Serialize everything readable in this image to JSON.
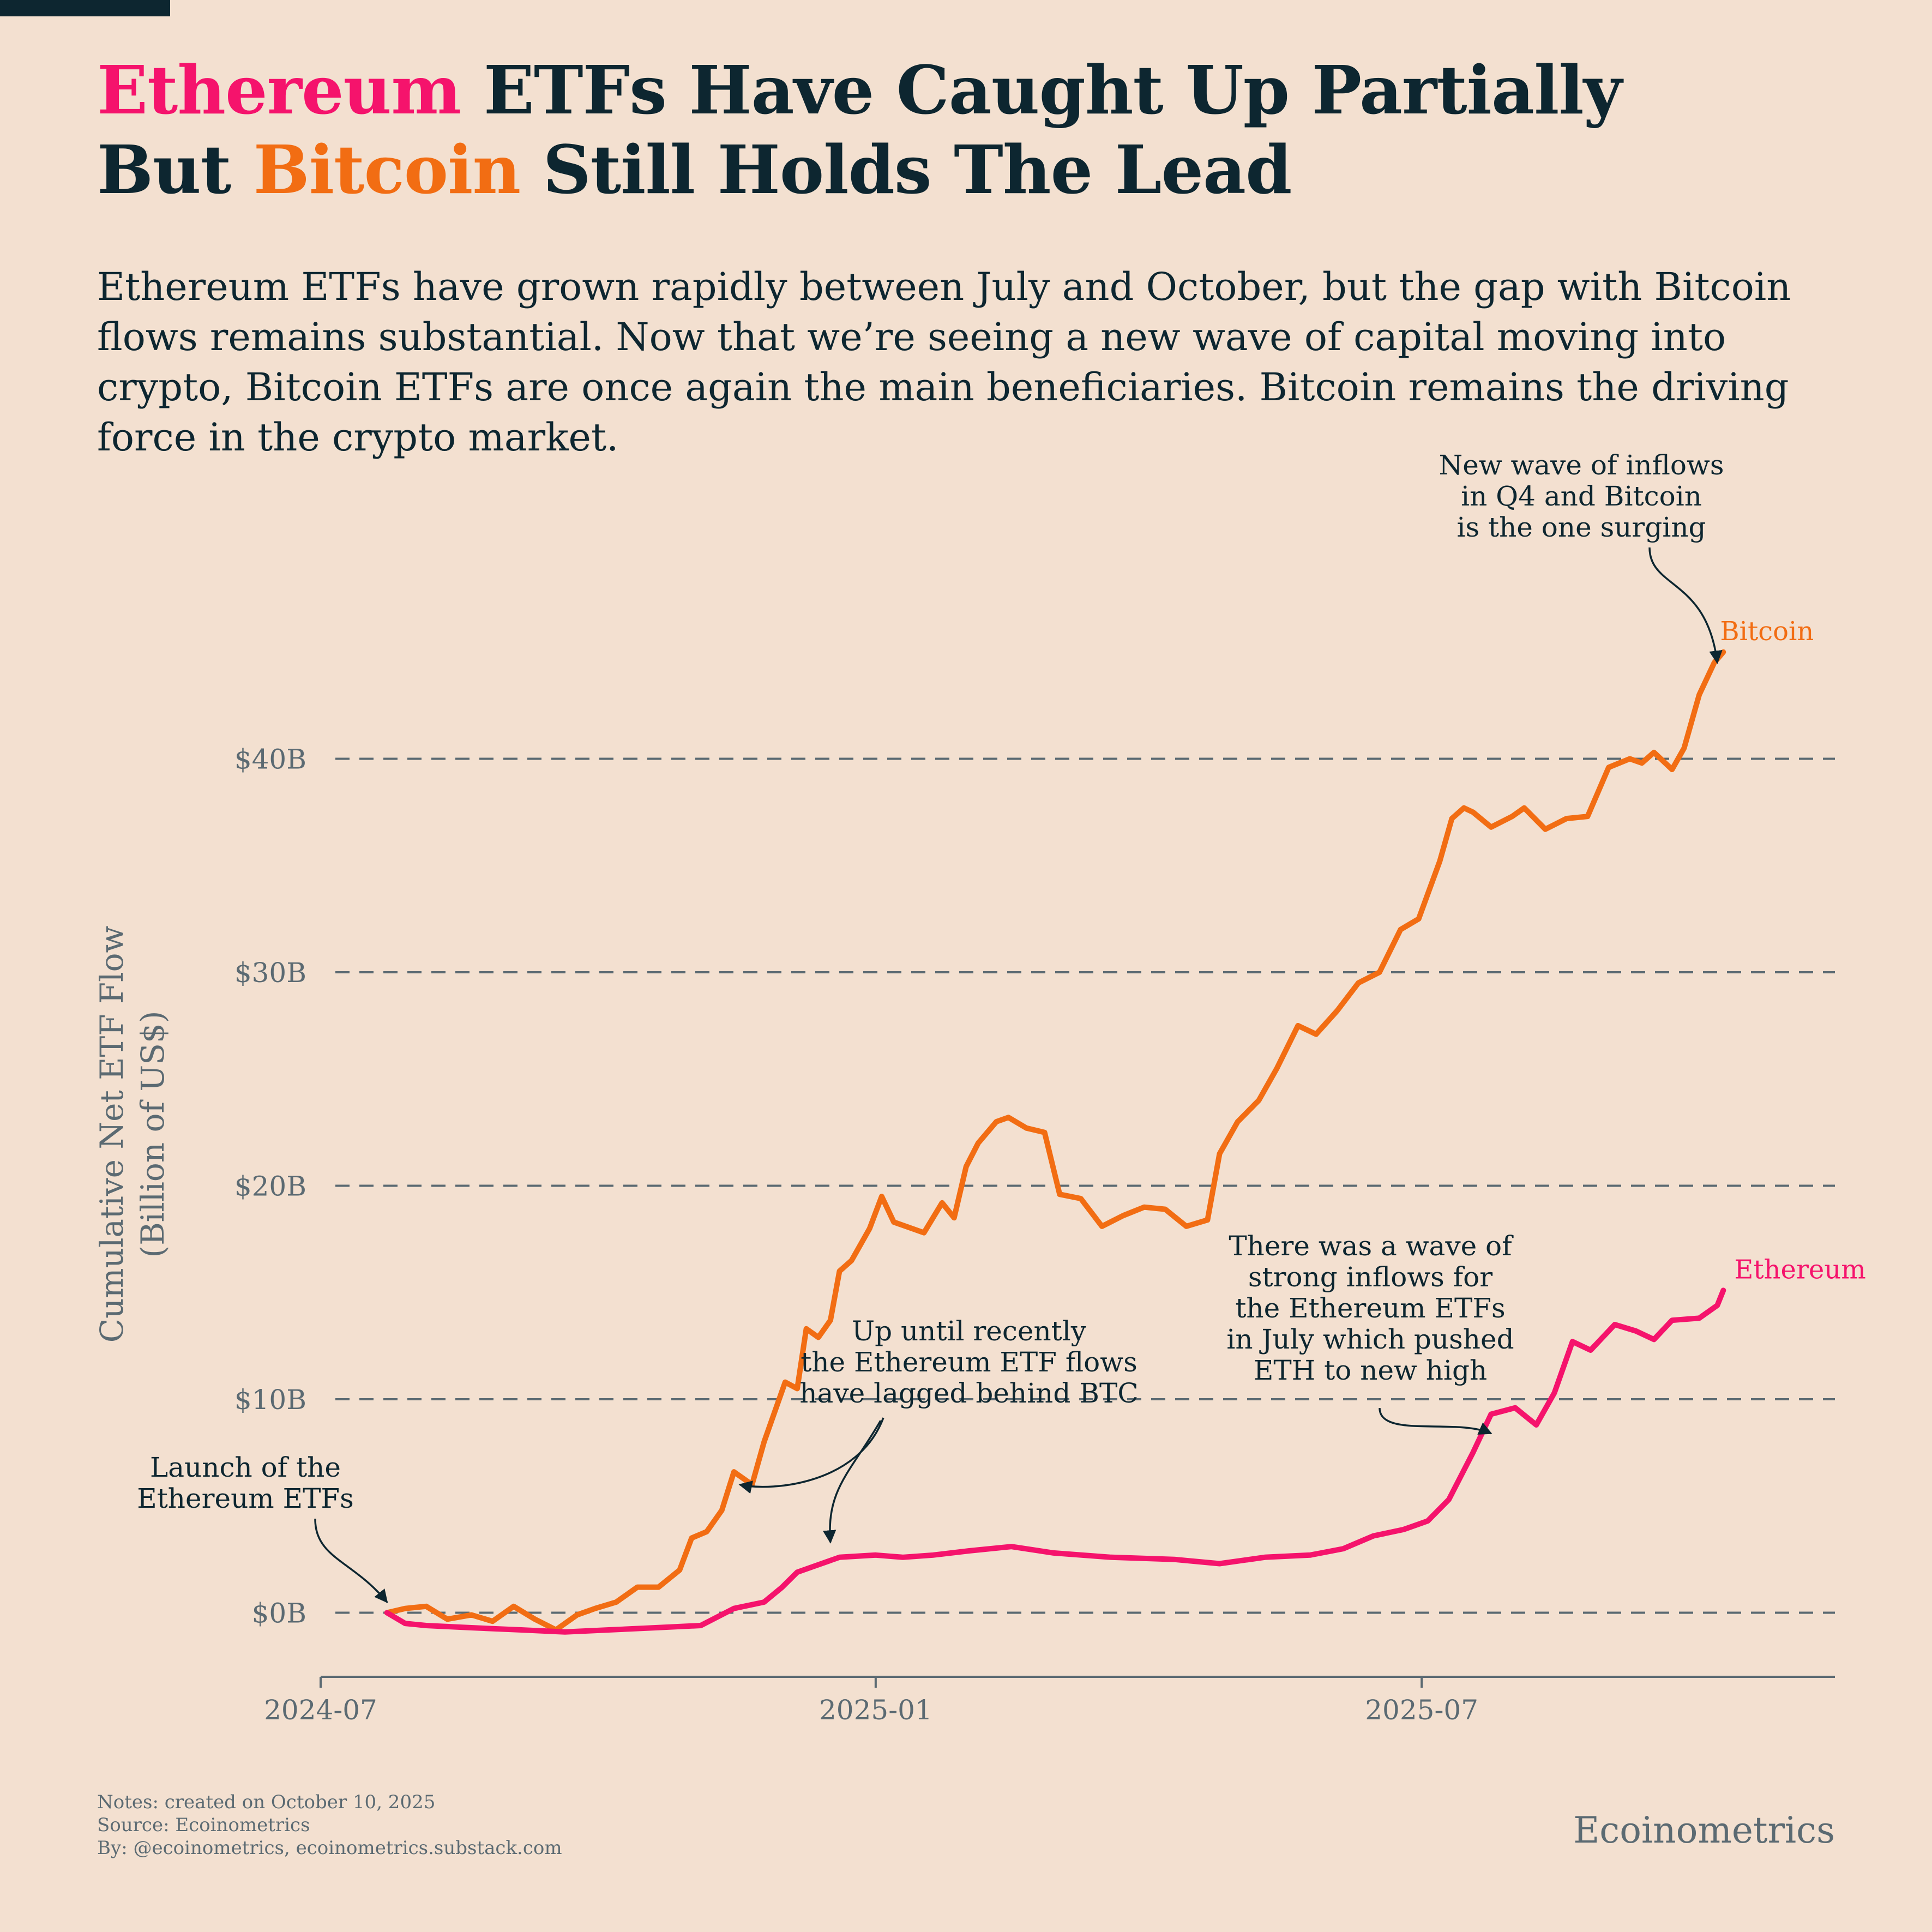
{
  "title": {
    "line1_highlight": "Ethereum",
    "line1_rest": " ETFs Have Caught Up Partially",
    "line2_start": "But ",
    "line2_highlight": "Bitcoin",
    "line2_rest": " Still Holds The Lead"
  },
  "subtitle": "Ethereum ETFs have grown rapidly between July and October, but the gap with Bitcoin flows remains substantial. Now that we’re seeing a new wave of capital moving into crypto, Bitcoin ETFs are once again the main beneficiaries. Bitcoin remains the driving force in the crypto market.",
  "colors": {
    "bitcoin": "#f26d13",
    "ethereum": "#f5136c",
    "text": "#0d2630",
    "muted": "#5b6a72",
    "background": "#f3e0d0"
  },
  "chart_data": {
    "type": "line",
    "ylabel": [
      "Cumulative Net ETF Flow",
      "(Billion of US$)"
    ],
    "xlabel": "",
    "ylim": [
      -3,
      50
    ],
    "xlim": [
      "2024-07-01",
      "2025-11-15"
    ],
    "yticks": [
      0,
      10,
      20,
      30,
      40
    ],
    "ytick_labels": [
      "$0B",
      "$10B",
      "$20B",
      "$30B",
      "$40B"
    ],
    "xticks": [
      "2024-07-01",
      "2025-01-01",
      "2025-07-01"
    ],
    "xtick_labels": [
      "2024-07",
      "2025-01",
      "2025-07"
    ],
    "grid": "horizontal dashed",
    "series": [
      {
        "name": "Bitcoin",
        "x": [
          "2024-07-23",
          "2024-07-29",
          "2024-08-05",
          "2024-08-12",
          "2024-08-20",
          "2024-08-27",
          "2024-09-03",
          "2024-09-10",
          "2024-09-17",
          "2024-09-24",
          "2024-09-30",
          "2024-10-07",
          "2024-10-14",
          "2024-10-21",
          "2024-10-28",
          "2024-11-01",
          "2024-11-06",
          "2024-11-11",
          "2024-11-15",
          "2024-11-21",
          "2024-11-25",
          "2024-12-02",
          "2024-12-06",
          "2024-12-09",
          "2024-12-13",
          "2024-12-17",
          "2024-12-20",
          "2024-12-24",
          "2024-12-30",
          "2025-01-03",
          "2025-01-07",
          "2025-01-13",
          "2025-01-17",
          "2025-01-23",
          "2025-01-27",
          "2025-01-31",
          "2025-02-04",
          "2025-02-10",
          "2025-02-14",
          "2025-02-20",
          "2025-02-26",
          "2025-03-03",
          "2025-03-10",
          "2025-03-17",
          "2025-03-24",
          "2025-03-31",
          "2025-04-07",
          "2025-04-14",
          "2025-04-21",
          "2025-04-25",
          "2025-05-01",
          "2025-05-08",
          "2025-05-14",
          "2025-05-21",
          "2025-05-27",
          "2025-06-03",
          "2025-06-10",
          "2025-06-17",
          "2025-06-24",
          "2025-06-30",
          "2025-07-07",
          "2025-07-11",
          "2025-07-15",
          "2025-07-18",
          "2025-07-24",
          "2025-07-31",
          "2025-08-04",
          "2025-08-11",
          "2025-08-18",
          "2025-08-25",
          "2025-09-01",
          "2025-09-08",
          "2025-09-12",
          "2025-09-16",
          "2025-09-22",
          "2025-09-26",
          "2025-10-01",
          "2025-10-06",
          "2025-10-09"
        ],
        "y": [
          0,
          0.2,
          0.3,
          -0.3,
          -0.1,
          -0.4,
          0.3,
          -0.3,
          -0.8,
          -0.1,
          0.2,
          0.5,
          1.2,
          1.2,
          2.0,
          3.5,
          3.8,
          4.8,
          6.6,
          6.0,
          8.0,
          10.8,
          10.5,
          13.3,
          12.9,
          13.7,
          16.0,
          16.5,
          18.0,
          19.5,
          18.3,
          18.0,
          17.8,
          19.2,
          18.5,
          20.9,
          22.0,
          23.0,
          23.2,
          22.7,
          22.5,
          19.6,
          19.4,
          18.1,
          18.6,
          19.0,
          18.9,
          18.1,
          18.4,
          21.5,
          23.0,
          24.0,
          25.5,
          27.5,
          27.1,
          28.2,
          29.5,
          30.0,
          32.0,
          32.5,
          35.2,
          37.2,
          37.7,
          37.5,
          36.8,
          37.3,
          37.7,
          36.7,
          37.2,
          37.3,
          39.6,
          40.0,
          39.8,
          40.3,
          39.5,
          40.5,
          43.0,
          44.5,
          45.0
        ]
      },
      {
        "name": "Ethereum",
        "x": [
          "2024-07-23",
          "2024-07-29",
          "2024-08-05",
          "2024-08-20",
          "2024-09-05",
          "2024-09-20",
          "2024-10-05",
          "2024-10-20",
          "2024-11-04",
          "2024-11-15",
          "2024-11-25",
          "2024-12-01",
          "2024-12-06",
          "2024-12-12",
          "2024-12-20",
          "2025-01-01",
          "2025-01-10",
          "2025-01-20",
          "2025-02-01",
          "2025-02-15",
          "2025-03-01",
          "2025-03-20",
          "2025-04-10",
          "2025-04-25",
          "2025-05-10",
          "2025-05-25",
          "2025-06-05",
          "2025-06-15",
          "2025-06-25",
          "2025-07-03",
          "2025-07-10",
          "2025-07-18",
          "2025-07-24",
          "2025-08-01",
          "2025-08-08",
          "2025-08-14",
          "2025-08-20",
          "2025-08-26",
          "2025-09-03",
          "2025-09-10",
          "2025-09-16",
          "2025-09-22",
          "2025-10-01",
          "2025-10-07",
          "2025-10-09"
        ],
        "y": [
          0,
          -0.5,
          -0.6,
          -0.7,
          -0.8,
          -0.9,
          -0.8,
          -0.7,
          -0.6,
          0.2,
          0.5,
          1.2,
          1.9,
          2.2,
          2.6,
          2.7,
          2.6,
          2.7,
          2.9,
          3.1,
          2.8,
          2.6,
          2.5,
          2.3,
          2.6,
          2.7,
          3.0,
          3.6,
          3.9,
          4.3,
          5.3,
          7.5,
          9.3,
          9.6,
          8.8,
          10.3,
          12.7,
          12.3,
          13.5,
          13.2,
          12.8,
          13.7,
          13.8,
          14.4,
          15.1
        ]
      }
    ],
    "series_labels": {
      "bitcoin": "Bitcoin",
      "ethereum": "Ethereum"
    },
    "annotations": [
      {
        "lines": [
          "Launch of the",
          "Ethereum ETFs"
        ],
        "target_x": "2024-07-23",
        "target_y": 0.5
      },
      {
        "lines": [
          "Up until recently",
          "the Ethereum ETF flows",
          "have lagged behind BTC"
        ],
        "target_x": "2024-11-17",
        "target_y": 6.0
      },
      {
        "lines": [
          "There was a wave of",
          "strong inflows for",
          "the Ethereum ETFs",
          "in July which pushed",
          "ETH to new high"
        ],
        "target_x": "2025-07-24",
        "target_y": 8.4
      },
      {
        "lines": [
          "New wave of inflows",
          "in Q4 and Bitcoin",
          "is the one surging"
        ],
        "target_x": "2025-10-07",
        "target_y": 44.5
      }
    ]
  },
  "notes": {
    "line1": "Notes: created on October 10, 2025",
    "line2": "Source: Ecoinometrics",
    "line3": "By: @ecoinometrics, ecoinometrics.substack.com"
  },
  "brand": "Ecoinometrics"
}
